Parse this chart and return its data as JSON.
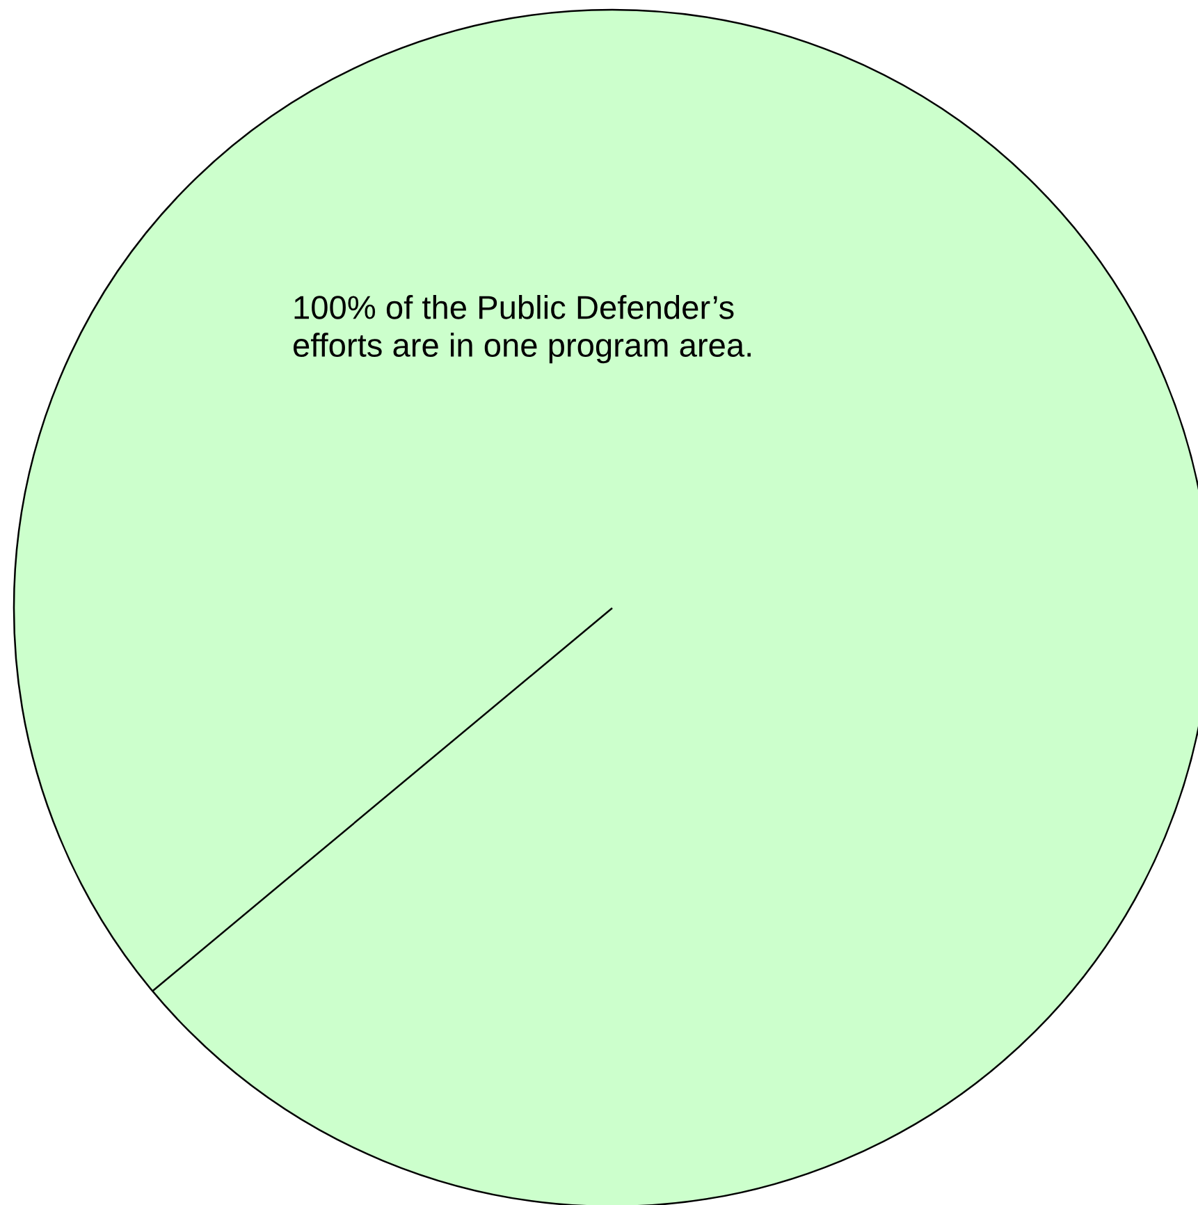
{
  "chart_data": {
    "type": "pie",
    "categories": [
      null
    ],
    "values": [
      100
    ],
    "colors": [
      "#ccffcc"
    ],
    "annotations": [
      "100% of the Public Defender’s\nefforts are in one program area."
    ]
  }
}
